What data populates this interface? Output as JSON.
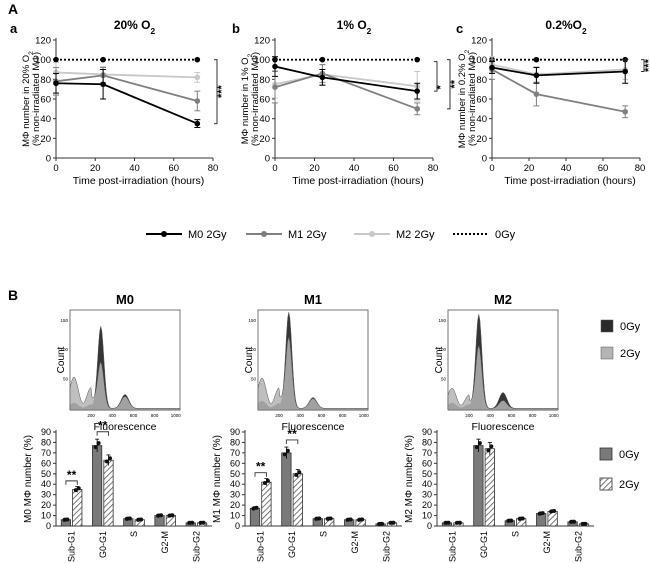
{
  "figure": {
    "panel_A_label": "A",
    "panel_B_label": "B",
    "legend_A": [
      {
        "label": "M0 2Gy",
        "color": "#000000",
        "style": "solid"
      },
      {
        "label": "M1 2Gy",
        "color": "#808080",
        "style": "solid"
      },
      {
        "label": "M2 2Gy",
        "color": "#c8c8c8",
        "style": "solid"
      },
      {
        "label": "0Gy",
        "color": "#000000",
        "style": "dotted"
      }
    ],
    "legend_B": [
      {
        "label": "0Gy",
        "fill": "solid"
      },
      {
        "label": "2Gy",
        "fill": "hatched"
      }
    ],
    "hist_legend": [
      {
        "label": "0Gy",
        "color": "#2b2b2b"
      },
      {
        "label": "2Gy",
        "color": "#b4b4b4"
      }
    ]
  },
  "chart_data": [
    {
      "type": "line",
      "panel": "a",
      "title": "20% O",
      "title_sub": "2",
      "xlabel": "Time post-irradiation (hours)",
      "ylabel_1": "MΦ number in 20% O",
      "ylabel_sub": "2",
      "ylabel_2": "(% non-irradiated MΦ)",
      "xlim": [
        0,
        80
      ],
      "ylim": [
        0,
        120
      ],
      "xticks": [
        0,
        20,
        40,
        60,
        80
      ],
      "yticks": [
        0,
        20,
        40,
        60,
        80,
        100,
        120
      ],
      "series": [
        {
          "name": "0Gy",
          "x": [
            0,
            24,
            72
          ],
          "y": [
            100,
            100,
            100
          ],
          "err": [
            0,
            0,
            0
          ]
        },
        {
          "name": "M2 2Gy",
          "x": [
            0,
            24,
            72
          ],
          "y": [
            87,
            85,
            82
          ],
          "err": [
            10,
            8,
            5
          ]
        },
        {
          "name": "M1 2Gy",
          "x": [
            0,
            24,
            72
          ],
          "y": [
            78,
            84,
            58
          ],
          "err": [
            14,
            8,
            10
          ]
        },
        {
          "name": "M0 2Gy",
          "x": [
            0,
            24,
            72
          ],
          "y": [
            76,
            75,
            35
          ],
          "err": [
            10,
            15,
            4
          ]
        }
      ],
      "significance": [
        "***"
      ]
    },
    {
      "type": "line",
      "panel": "b",
      "title": "1% O",
      "title_sub": "2",
      "xlabel": "Time post-irradiation (hours)",
      "ylabel_1": "MΦ number in 1% O",
      "ylabel_sub": "2",
      "ylabel_2": "(% non-irradiated MΦ)",
      "xlim": [
        0,
        80
      ],
      "ylim": [
        0,
        120
      ],
      "xticks": [
        0,
        20,
        40,
        60,
        80
      ],
      "yticks": [
        0,
        20,
        40,
        60,
        80,
        100,
        120
      ],
      "series": [
        {
          "name": "0Gy",
          "x": [
            0,
            24,
            72
          ],
          "y": [
            100,
            100,
            100
          ],
          "err": [
            0,
            0,
            0
          ]
        },
        {
          "name": "M2 2Gy",
          "x": [
            0,
            24,
            72
          ],
          "y": [
            75,
            85,
            73
          ],
          "err": [
            14,
            10,
            15
          ]
        },
        {
          "name": "M1 2Gy",
          "x": [
            0,
            24,
            72
          ],
          "y": [
            72,
            86,
            50
          ],
          "err": [
            16,
            9,
            6
          ]
        },
        {
          "name": "M0 2Gy",
          "x": [
            0,
            24,
            72
          ],
          "y": [
            93,
            82,
            68
          ],
          "err": [
            10,
            8,
            8
          ]
        }
      ],
      "significance": [
        "*",
        "**"
      ]
    },
    {
      "type": "line",
      "panel": "c",
      "title": "0.2%O",
      "title_sub": "2",
      "xlabel": "Time post-irradiation (hours)",
      "ylabel_1": "MΦ number in 0.2% O",
      "ylabel_sub": "2",
      "ylabel_2": "(% non-irradiated MΦ)",
      "xlim": [
        0,
        80
      ],
      "ylim": [
        0,
        120
      ],
      "xticks": [
        0,
        20,
        40,
        60,
        80
      ],
      "yticks": [
        0,
        20,
        40,
        60,
        80,
        100,
        120
      ],
      "series": [
        {
          "name": "0Gy",
          "x": [
            0,
            24,
            72
          ],
          "y": [
            100,
            100,
            100
          ],
          "err": [
            0,
            0,
            0
          ]
        },
        {
          "name": "M2 2Gy",
          "x": [
            0,
            24,
            72
          ],
          "y": [
            95,
            85,
            90
          ],
          "err": [
            8,
            8,
            10
          ]
        },
        {
          "name": "M1 2Gy",
          "x": [
            0,
            24,
            72
          ],
          "y": [
            90,
            65,
            47
          ],
          "err": [
            10,
            12,
            6
          ]
        },
        {
          "name": "M0 2Gy",
          "x": [
            0,
            24,
            72
          ],
          "y": [
            92,
            84,
            88
          ],
          "err": [
            6,
            8,
            12
          ]
        }
      ],
      "significance": [
        "***"
      ]
    },
    {
      "type": "histogram",
      "title": "M0",
      "xlabel": "Fluorescence",
      "ylabel": "Count",
      "xticks": [
        "200",
        "400",
        "600",
        "800",
        "1000"
      ],
      "yticks": [
        "50",
        "100",
        "150"
      ]
    },
    {
      "type": "histogram",
      "title": "M1",
      "xlabel": "Fluorescence",
      "ylabel": "Count",
      "xticks": [
        "200",
        "400",
        "600",
        "800",
        "1000"
      ],
      "yticks": [
        "50",
        "100",
        "150"
      ]
    },
    {
      "type": "histogram",
      "title": "M2",
      "xlabel": "Fluorescence",
      "ylabel": "Count",
      "xticks": [
        "200",
        "400",
        "600",
        "800",
        "1000"
      ],
      "yticks": [
        "50",
        "100",
        "150"
      ]
    },
    {
      "type": "bar",
      "panel": "M0",
      "ylabel": "M0 MΦ number (%)",
      "categories": [
        "Sub-G1",
        "G0-G1",
        "S",
        "G2-M",
        "Sub-G2"
      ],
      "ylim": [
        0,
        90
      ],
      "yticks": [
        0,
        10,
        20,
        30,
        40,
        50,
        60,
        70,
        80,
        90
      ],
      "series": [
        {
          "name": "0Gy",
          "values": [
            6,
            77,
            7,
            10,
            3
          ]
        },
        {
          "name": "2Gy",
          "values": [
            35,
            63,
            6,
            10,
            3
          ]
        }
      ],
      "significance": [
        "**",
        "**"
      ]
    },
    {
      "type": "bar",
      "panel": "M1",
      "ylabel": "M1 MΦ number (%)",
      "categories": [
        "Sub-G1",
        "G0-G1",
        "S",
        "G2-M",
        "Sub-G2"
      ],
      "ylim": [
        0,
        90
      ],
      "yticks": [
        0,
        10,
        20,
        30,
        40,
        50,
        60,
        70,
        80,
        90
      ],
      "series": [
        {
          "name": "0Gy",
          "values": [
            17,
            70,
            7,
            6,
            2
          ]
        },
        {
          "name": "2Gy",
          "values": [
            42,
            50,
            7,
            6,
            3
          ]
        }
      ],
      "significance": [
        "**",
        "**"
      ]
    },
    {
      "type": "bar",
      "panel": "M2",
      "ylabel": "M2 MΦ number (%)",
      "categories": [
        "Sub-G1",
        "G0-G1",
        "S",
        "G2-M",
        "Sub-G2"
      ],
      "ylim": [
        0,
        90
      ],
      "yticks": [
        0,
        10,
        20,
        30,
        40,
        50,
        60,
        70,
        80,
        90
      ],
      "series": [
        {
          "name": "0Gy",
          "values": [
            3,
            77,
            5,
            12,
            4
          ]
        },
        {
          "name": "2Gy",
          "values": [
            3,
            74,
            7,
            14,
            2
          ]
        }
      ],
      "significance": []
    }
  ]
}
